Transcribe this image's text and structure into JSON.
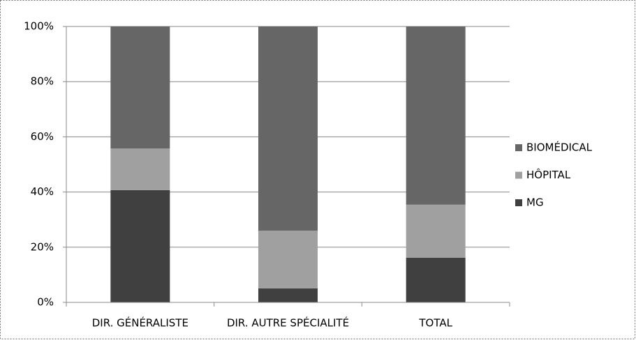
{
  "chart_data": {
    "type": "bar",
    "stacked": true,
    "categories": [
      "DIR. GÉNÉRALISTE",
      "DIR. AUTRE SPÉCIALITÉ",
      "TOTAL"
    ],
    "series": [
      {
        "name": "MG",
        "color": "#404040",
        "values": [
          40.7,
          5.1,
          16.2
        ]
      },
      {
        "name": "HÔPITAL",
        "color": "#a0a0a0",
        "values": [
          15.1,
          20.9,
          19.2
        ]
      },
      {
        "name": "BIOMÉDICAL",
        "color": "#666666",
        "values": [
          44.2,
          74.0,
          64.6
        ]
      }
    ],
    "ylim": [
      0,
      100
    ],
    "yticks": [
      {
        "value": 0,
        "label": "0%"
      },
      {
        "value": 20,
        "label": "20%"
      },
      {
        "value": 40,
        "label": "40%"
      },
      {
        "value": 60,
        "label": "60%"
      },
      {
        "value": 80,
        "label": "80%"
      },
      {
        "value": 100,
        "label": "100%"
      }
    ],
    "grid": true,
    "legend": "right"
  }
}
